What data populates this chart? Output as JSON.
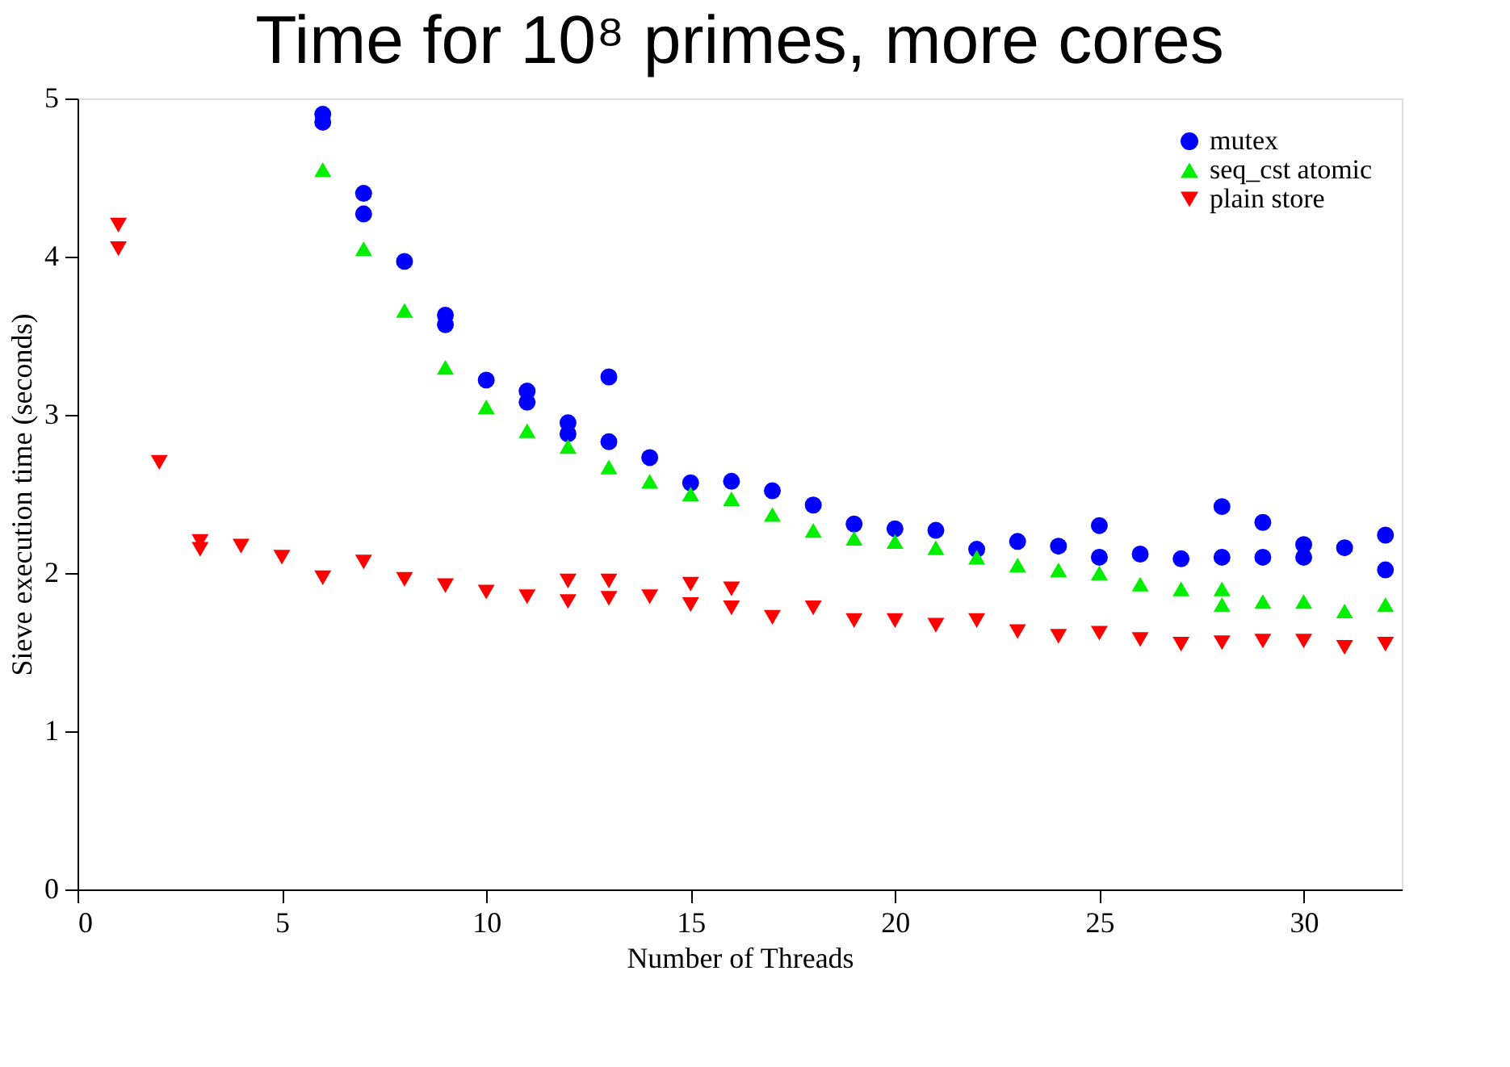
{
  "chart_data": {
    "type": "scatter",
    "title": "Time for 10⁸ primes, more cores",
    "xlabel": "Number of Threads",
    "ylabel": "Sieve execution time (seconds)",
    "xlim": [
      0,
      32.4
    ],
    "xticks": [
      0,
      5,
      10,
      15,
      20,
      25,
      30
    ],
    "ylim": [
      0,
      5
    ],
    "yticks": [
      0,
      1,
      2,
      3,
      4,
      5
    ],
    "grid": false,
    "legend": "top right",
    "series": [
      {
        "name": "mutex",
        "color": "#0000ff",
        "marker": "circle",
        "x": [
          6,
          6,
          7,
          7,
          8,
          9,
          9,
          10,
          11,
          11,
          12,
          12,
          13,
          13,
          14,
          15,
          16,
          17,
          18,
          19,
          20,
          21,
          22,
          23,
          24,
          25,
          25,
          26,
          27,
          28,
          28,
          29,
          29,
          30,
          30,
          31,
          32,
          32
        ],
        "values": [
          4.9,
          4.85,
          4.4,
          4.27,
          3.97,
          3.63,
          3.57,
          3.22,
          3.15,
          3.08,
          2.95,
          2.88,
          3.24,
          2.83,
          2.73,
          2.57,
          2.58,
          2.52,
          2.43,
          2.31,
          2.28,
          2.27,
          2.15,
          2.2,
          2.17,
          2.3,
          2.1,
          2.12,
          2.09,
          2.42,
          2.1,
          2.32,
          2.1,
          2.18,
          2.1,
          2.16,
          2.24,
          2.02
        ]
      },
      {
        "name": "seq_cst atomic",
        "color": "#00ee00",
        "marker": "triangle",
        "x": [
          6,
          7,
          8,
          9,
          10,
          11,
          12,
          13,
          14,
          15,
          16,
          17,
          18,
          19,
          20,
          21,
          22,
          23,
          24,
          25,
          26,
          27,
          28,
          28,
          29,
          30,
          31,
          32
        ],
        "values": [
          4.55,
          4.05,
          3.66,
          3.3,
          3.05,
          2.9,
          2.8,
          2.67,
          2.58,
          2.5,
          2.47,
          2.37,
          2.27,
          2.22,
          2.2,
          2.16,
          2.1,
          2.05,
          2.02,
          2.0,
          1.93,
          1.9,
          1.9,
          1.8,
          1.82,
          1.82,
          1.76,
          1.8
        ]
      },
      {
        "name": "plain store",
        "color": "#ff0000",
        "marker": "triangle-down",
        "x": [
          1,
          1,
          2,
          3,
          3,
          4,
          5,
          6,
          7,
          8,
          9,
          10,
          11,
          12,
          12,
          13,
          13,
          14,
          15,
          15,
          16,
          16,
          17,
          18,
          19,
          20,
          21,
          22,
          23,
          24,
          25,
          26,
          27,
          28,
          29,
          30,
          31,
          32
        ],
        "values": [
          4.2,
          4.05,
          2.7,
          2.2,
          2.15,
          2.17,
          2.1,
          1.97,
          2.07,
          1.96,
          1.92,
          1.88,
          1.85,
          1.95,
          1.82,
          1.95,
          1.84,
          1.85,
          1.93,
          1.8,
          1.9,
          1.78,
          1.72,
          1.78,
          1.7,
          1.7,
          1.67,
          1.7,
          1.63,
          1.6,
          1.62,
          1.58,
          1.55,
          1.56,
          1.57,
          1.57,
          1.53,
          1.55
        ]
      }
    ]
  }
}
